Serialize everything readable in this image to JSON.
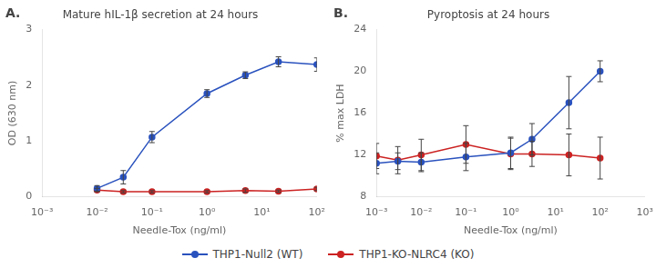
{
  "chart_data": [
    {
      "type": "line",
      "title": "Mature hIL-1β secretion at 24 hours",
      "annotations": [
        "A."
      ],
      "xlabel": "Needle-Tox (ng/ml)",
      "ylabel": "OD (630 nm)",
      "log": "x",
      "grid": false,
      "legend": "bottom",
      "xlim": [
        0.001,
        100
      ],
      "xticks": [
        {
          "value": 0.001,
          "label": "10⁻³"
        },
        {
          "value": 0.01,
          "label": "10⁻²"
        },
        {
          "value": 0.1,
          "label": "10⁻¹"
        },
        {
          "value": 1,
          "label": "10⁰"
        },
        {
          "value": 10,
          "label": "10¹"
        },
        {
          "value": 100,
          "label": "10²"
        }
      ],
      "ylim": [
        0,
        3
      ],
      "yticks": [
        0,
        1,
        2,
        3
      ],
      "x": [
        0.01,
        0.03,
        0.1,
        1.0,
        5.0,
        20.0,
        100.0
      ],
      "series": [
        {
          "name": "THP1-Null2 (WT)",
          "color": "#2a52be",
          "marker": "circle",
          "line_style": "solid",
          "values": [
            0.15,
            0.35,
            1.07,
            1.85,
            2.18,
            2.42,
            2.37
          ],
          "yerr": [
            0.05,
            0.12,
            0.1,
            0.07,
            0.06,
            0.09,
            0.12
          ]
        },
        {
          "name": "THP1-KO-NLRC4 (KO)",
          "color": "#cc2222",
          "marker": "circle",
          "line_style": "solid",
          "values": [
            0.12,
            0.09,
            0.09,
            0.09,
            0.11,
            0.1,
            0.14
          ],
          "yerr": [
            0.03,
            0.02,
            0.02,
            0.02,
            0.03,
            0.02,
            0.03
          ]
        }
      ]
    },
    {
      "type": "line",
      "title": "Pyroptosis at 24 hours",
      "annotations": [
        "B."
      ],
      "xlabel": "Needle-Tox (ng/ml)",
      "ylabel": "% max LDH",
      "log": "x",
      "grid": false,
      "legend": "bottom",
      "xlim": [
        0.001,
        1000
      ],
      "xticks": [
        {
          "value": 0.001,
          "label": "10⁻³"
        },
        {
          "value": 0.01,
          "label": "10⁻²"
        },
        {
          "value": 0.1,
          "label": "10⁻¹"
        },
        {
          "value": 1,
          "label": "10⁰"
        },
        {
          "value": 10,
          "label": "10¹"
        },
        {
          "value": 100,
          "label": "10²"
        },
        {
          "value": 1000,
          "label": "10³"
        }
      ],
      "ylim": [
        8,
        24
      ],
      "yticks": [
        8,
        12,
        16,
        20,
        24
      ],
      "x": [
        0.001,
        0.003,
        0.01,
        0.1,
        1.0,
        3.0,
        20.0,
        100.0
      ],
      "series": [
        {
          "name": "THP1-Null2 (WT)",
          "color": "#2a52be",
          "marker": "circle",
          "line_style": "solid",
          "values": [
            11.2,
            11.4,
            11.3,
            11.8,
            12.2,
            13.5,
            17.0,
            20.0
          ],
          "yerr": [
            1.0,
            0.8,
            0.9,
            1.3,
            1.5,
            1.5,
            2.5,
            1.0
          ]
        },
        {
          "name": "THP1-KO-NLRC4 (KO)",
          "color": "#cc2222",
          "marker": "circle",
          "line_style": "solid",
          "values": [
            11.9,
            11.5,
            12.0,
            13.0,
            12.1,
            12.1,
            12.0,
            11.7
          ],
          "yerr": [
            1.2,
            1.3,
            1.5,
            1.8,
            1.5,
            1.2,
            2.0,
            2.0
          ]
        }
      ]
    }
  ]
}
